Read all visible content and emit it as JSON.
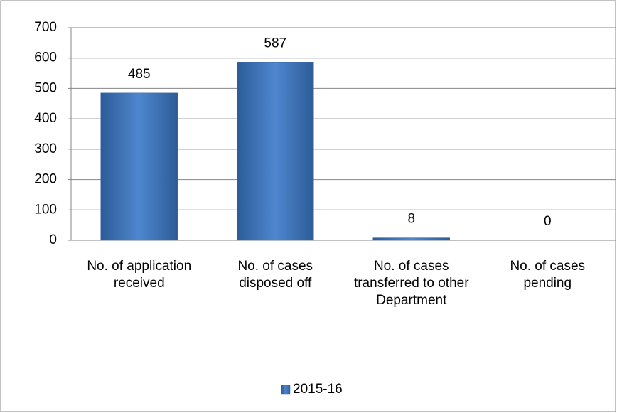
{
  "chart_data": {
    "type": "bar",
    "categories": [
      "No. of application received",
      "No. of cases disposed off",
      "No. of cases transferred to other Department",
      "No. of cases pending"
    ],
    "series": [
      {
        "name": "2015-16",
        "color": "#4f81bd",
        "values": [
          485,
          587,
          8,
          0
        ]
      }
    ],
    "ylim": [
      0,
      700
    ],
    "yticks": [
      0,
      100,
      200,
      300,
      400,
      500,
      600,
      700
    ],
    "grid": true,
    "legend": "bottom"
  }
}
